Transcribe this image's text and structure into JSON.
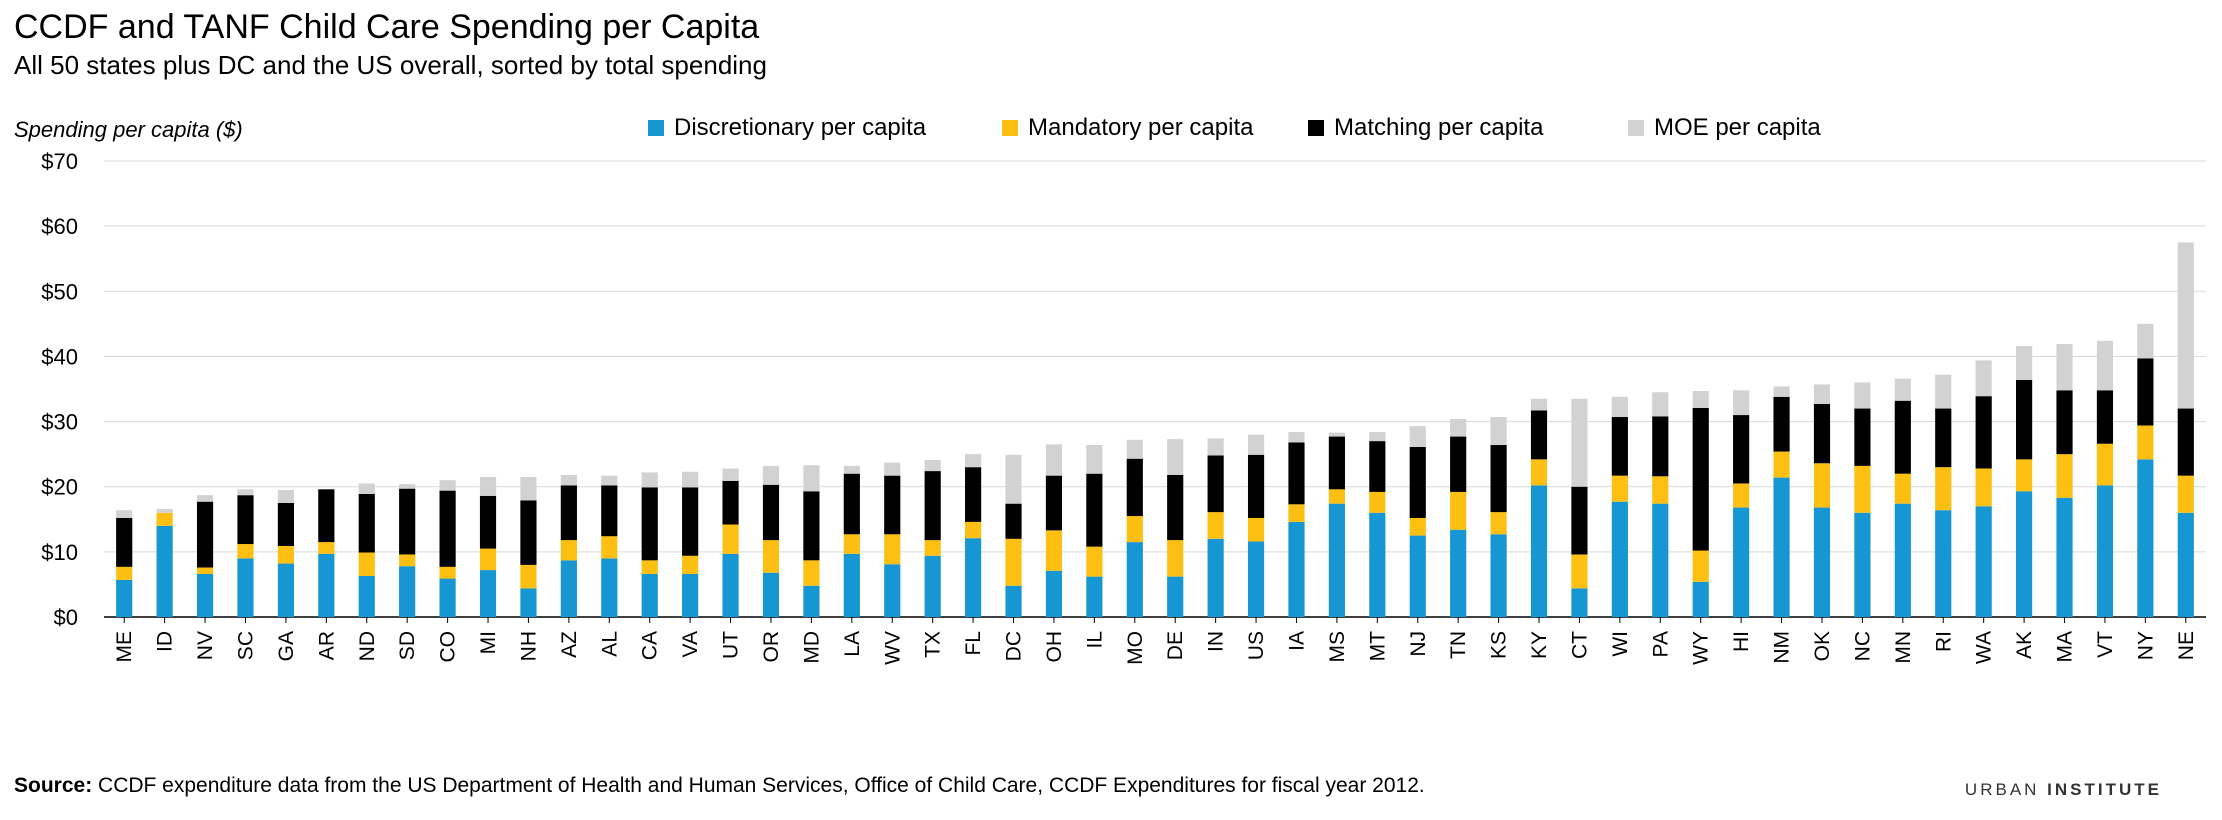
{
  "title": "CCDF and TANF Child Care Spending per Capita",
  "subtitle": "All 50 states plus DC and the US overall, sorted by total spending",
  "source": {
    "label": "Source:",
    "text": " CCDF expenditure data from the US Department of Health and Human Services, Office of Child Care,  CCDF Expenditures for  fiscal year 2012."
  },
  "brand": {
    "part1": "URBAN ",
    "part2": "INSTITUTE"
  },
  "chart_data": {
    "type": "bar",
    "stacked": true,
    "ylabel": "Spending per capita ($)",
    "ylim": [
      0,
      70
    ],
    "yticks": [
      0,
      10,
      20,
      30,
      40,
      50,
      60,
      70
    ],
    "ytick_labels": [
      "$0",
      "$10",
      "$20",
      "$30",
      "$40",
      "$50",
      "$60",
      "$70"
    ],
    "grid": true,
    "legend_position": "top",
    "categories": [
      "ME",
      "ID",
      "NV",
      "SC",
      "GA",
      "AR",
      "ND",
      "SD",
      "CO",
      "MI",
      "NH",
      "AZ",
      "AL",
      "CA",
      "VA",
      "UT",
      "OR",
      "MD",
      "LA",
      "WV",
      "TX",
      "FL",
      "DC",
      "OH",
      "IL",
      "MO",
      "DE",
      "IN",
      "US",
      "IA",
      "MS",
      "MT",
      "NJ",
      "TN",
      "KS",
      "KY",
      "CT",
      "WI",
      "PA",
      "WY",
      "HI",
      "NM",
      "OK",
      "NC",
      "MN",
      "RI",
      "WA",
      "AK",
      "MA",
      "VT",
      "NY",
      "NE"
    ],
    "series": [
      {
        "name": "Discretionary per capita",
        "color": "#1696d2",
        "values": [
          5.7,
          14.0,
          6.6,
          9.0,
          8.2,
          9.7,
          6.3,
          7.8,
          5.9,
          7.2,
          4.4,
          8.7,
          9.0,
          6.6,
          6.6,
          9.7,
          6.8,
          4.8,
          9.7,
          8.1,
          9.4,
          12.1,
          4.8,
          7.1,
          6.2,
          11.5,
          6.2,
          12.0,
          11.6,
          14.6,
          17.4,
          16.0,
          12.5,
          13.4,
          12.7,
          20.2,
          4.4,
          17.7,
          17.4,
          5.4,
          16.8,
          21.4,
          16.8,
          16.0,
          17.4,
          16.4,
          17.0,
          19.3,
          18.3,
          20.2,
          24.2,
          16.0
        ]
      },
      {
        "name": "Mandatory per capita",
        "color": "#fdbf11",
        "values": [
          2.0,
          2.0,
          1.0,
          2.2,
          2.7,
          1.8,
          3.6,
          1.8,
          1.8,
          3.3,
          3.6,
          3.1,
          3.4,
          2.1,
          2.8,
          4.5,
          5.0,
          3.9,
          3.0,
          4.6,
          2.4,
          2.5,
          7.2,
          6.2,
          4.6,
          4.0,
          5.6,
          4.1,
          3.6,
          2.7,
          2.2,
          3.2,
          2.7,
          5.8,
          3.4,
          4.0,
          5.2,
          4.0,
          4.2,
          4.8,
          3.7,
          4.0,
          6.8,
          7.2,
          4.6,
          6.6,
          5.8,
          4.9,
          6.7,
          6.4,
          5.2,
          5.7
        ]
      },
      {
        "name": "Matching per capita",
        "color": "#000000",
        "values": [
          7.5,
          0,
          10.1,
          7.5,
          6.6,
          8.1,
          9.0,
          10.1,
          11.7,
          8.1,
          9.9,
          8.4,
          7.8,
          11.2,
          10.5,
          6.7,
          8.5,
          10.6,
          9.3,
          9.0,
          10.6,
          8.4,
          5.4,
          8.4,
          11.2,
          8.8,
          10.0,
          8.7,
          9.7,
          9.5,
          8.1,
          7.8,
          10.9,
          8.5,
          10.3,
          7.5,
          10.4,
          9.0,
          9.2,
          21.9,
          10.5,
          8.4,
          9.1,
          8.8,
          11.2,
          9.0,
          11.1,
          12.2,
          9.8,
          8.2,
          10.3,
          10.3
        ]
      },
      {
        "name": "MOE per capita",
        "color": "#d2d2d2",
        "values": [
          1.2,
          0.6,
          1.0,
          0.9,
          2.0,
          0,
          1.6,
          0.7,
          1.6,
          2.9,
          3.6,
          1.6,
          1.5,
          2.3,
          2.4,
          1.9,
          2.9,
          4.0,
          1.2,
          2.0,
          1.7,
          2.0,
          7.5,
          4.8,
          4.4,
          2.9,
          5.5,
          2.6,
          3.1,
          1.6,
          0.6,
          1.4,
          3.2,
          2.7,
          4.3,
          1.8,
          13.5,
          3.1,
          3.7,
          2.6,
          3.8,
          1.6,
          3.0,
          4.0,
          3.4,
          5.2,
          5.5,
          5.2,
          7.1,
          7.6,
          5.3,
          25.5
        ]
      }
    ]
  }
}
